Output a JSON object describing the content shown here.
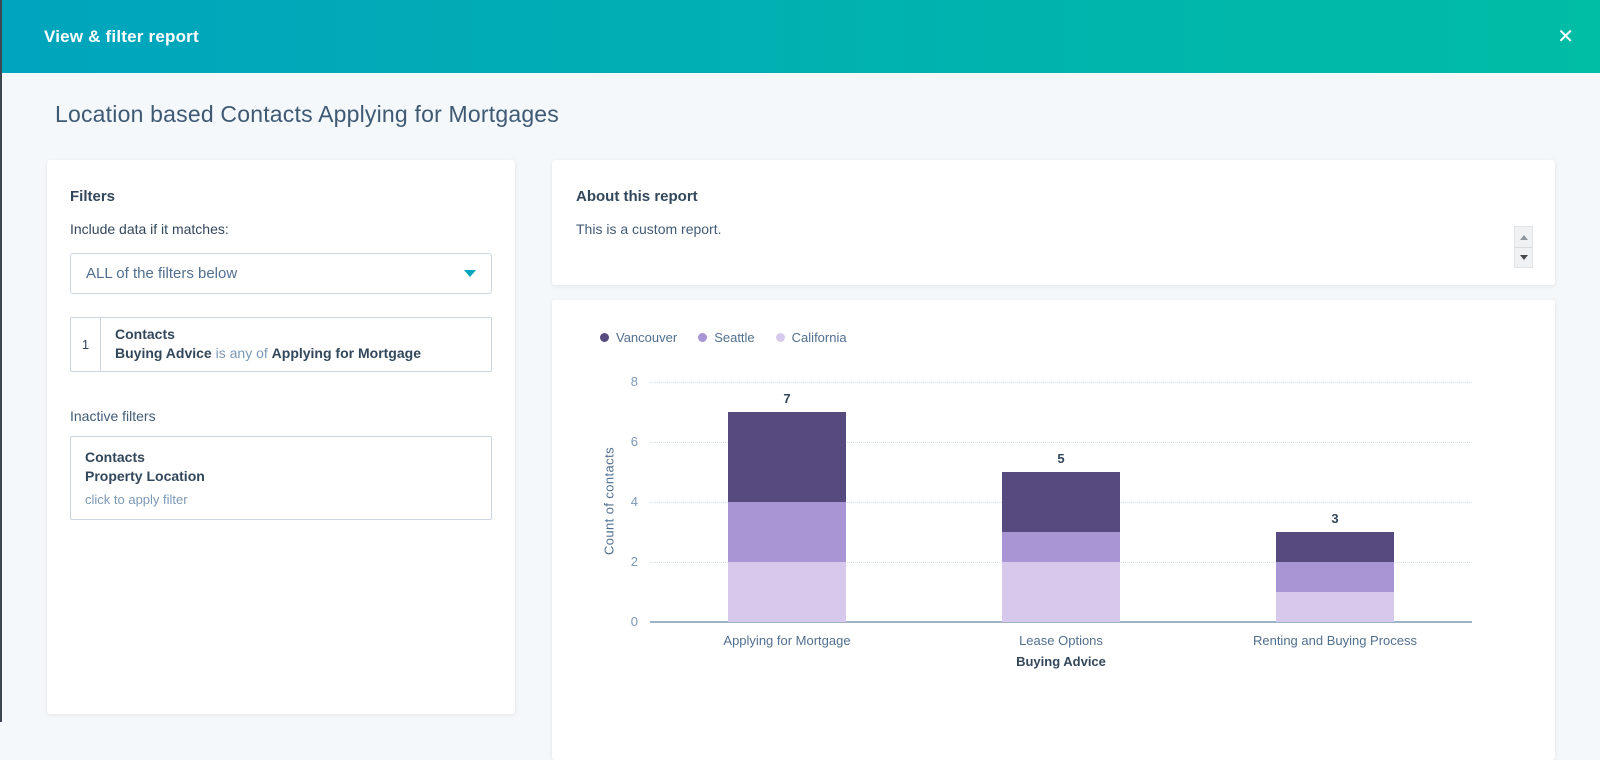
{
  "header": {
    "title": "View & filter report",
    "close_icon": "✕",
    "gradient_left": "#00a4bd",
    "gradient_right": "#00bda5"
  },
  "page": {
    "title": "Location based Contacts Applying for Mortgages"
  },
  "filters_panel": {
    "heading": "Filters",
    "match_label": "Include data if it matches:",
    "match_dropdown_value": "ALL of the filters below",
    "active_filters": [
      {
        "index": "1",
        "object": "Contacts",
        "property": "Buying Advice",
        "operator": "is any of",
        "value": "Applying for Mortgage"
      }
    ],
    "inactive_heading": "Inactive filters",
    "inactive_filters": [
      {
        "object": "Contacts",
        "property": "Property Location",
        "hint": "click to apply filter"
      }
    ]
  },
  "about_panel": {
    "heading": "About this report",
    "description": "This is a custom report."
  },
  "chart_data": {
    "type": "bar",
    "stacked": true,
    "categories": [
      "Applying for Mortgage",
      "Lease Options",
      "Renting and Buying Process"
    ],
    "series": [
      {
        "name": "Vancouver",
        "color": "#564a7e",
        "values": [
          3,
          2,
          1
        ]
      },
      {
        "name": "Seattle",
        "color": "#a795d4",
        "values": [
          2,
          1,
          1
        ]
      },
      {
        "name": "California",
        "color": "#d6c9ec",
        "values": [
          2,
          2,
          1
        ]
      }
    ],
    "stack_order_bottom_to_top": [
      "California",
      "Seattle",
      "Vancouver"
    ],
    "totals": [
      7,
      5,
      3
    ],
    "xlabel": "Buying Advice",
    "ylabel": "Count of contacts",
    "ylim": [
      0,
      8
    ],
    "yticks": [
      0,
      2,
      4,
      6,
      8
    ],
    "grid": "dotted-horizontal",
    "legend_position": "top-left"
  }
}
